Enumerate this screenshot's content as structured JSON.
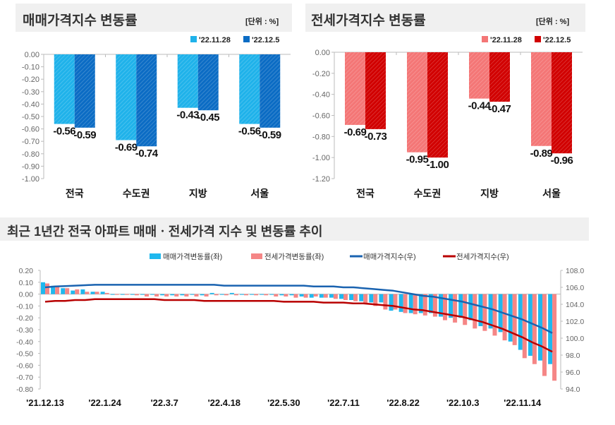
{
  "colors": {
    "sale_prev": "#1fb2ea",
    "sale_curr": "#0b6cc4",
    "jeonse_prev": "#f47676",
    "jeonse_curr": "#d10000",
    "sale_index_line": "#1a63b0",
    "jeonse_index_line": "#b80000",
    "sale_rate_bar": "#1fb8ee",
    "jeonse_rate_bar": "#f58686",
    "title_bg": "#f0f0f0"
  },
  "chart_data": [
    {
      "type": "bar",
      "title": "매매가격지수 변동률",
      "unit": "[단위 : %]",
      "categories": [
        "전국",
        "수도권",
        "지방",
        "서울"
      ],
      "series": [
        {
          "name": "'22.11.28",
          "values": [
            -0.56,
            -0.69,
            -0.43,
            -0.56
          ]
        },
        {
          "name": "'22.12.5",
          "values": [
            -0.59,
            -0.74,
            -0.45,
            -0.59
          ]
        }
      ],
      "ylim": [
        -1.0,
        0.0
      ],
      "yticks": [
        "0.00",
        "-0.10",
        "-0.20",
        "-0.30",
        "-0.40",
        "-0.50",
        "-0.60",
        "-0.70",
        "-0.80",
        "-0.90",
        "-1.00"
      ],
      "data_labels": [
        [
          "-0.56",
          "-0.69",
          "-0.43",
          "-0.56"
        ],
        [
          "-0.59",
          "-0.74",
          "-0.45",
          "-0.59"
        ]
      ],
      "legend": "top-right"
    },
    {
      "type": "bar",
      "title": "전세가격지수 변동률",
      "unit": "[단위 : %]",
      "categories": [
        "전국",
        "수도권",
        "지방",
        "서울"
      ],
      "series": [
        {
          "name": "'22.11.28",
          "values": [
            -0.69,
            -0.95,
            -0.44,
            -0.89
          ]
        },
        {
          "name": "'22.12.5",
          "values": [
            -0.73,
            -1.0,
            -0.47,
            -0.96
          ]
        }
      ],
      "ylim": [
        -1.2,
        0.0
      ],
      "yticks": [
        "0.00",
        "-0.20",
        "-0.40",
        "-0.60",
        "-0.80",
        "-1.00",
        "-1.20"
      ],
      "data_labels": [
        [
          "-0.69",
          "-0.95",
          "-0.44",
          "-0.89"
        ],
        [
          "-0.73",
          "-1.00",
          "-0.47",
          "-0.96"
        ]
      ],
      "legend": "top-right"
    },
    {
      "type": "bar+line",
      "title": "최근 1년간 전국 아파트 매매ㆍ전세가격 지수 및 변동률 추이",
      "x_tick_labels": [
        "'21.12.13",
        "'22.1.24",
        "'22.3.7",
        "'22.4.18",
        "'22.5.30",
        "'22.7.11",
        "'22.8.22",
        "'22.10.3",
        "'22.11.14"
      ],
      "y_left": {
        "lim": [
          -0.8,
          0.2
        ],
        "ticks": [
          "0.20",
          "0.10",
          "0.00",
          "-0.10",
          "-0.20",
          "-0.30",
          "-0.40",
          "-0.50",
          "-0.60",
          "-0.70",
          "-0.80"
        ]
      },
      "y_right": {
        "lim": [
          94.0,
          108.0
        ],
        "ticks": [
          "108.0",
          "106.0",
          "104.0",
          "102.0",
          "100.0",
          "98.0",
          "96.0",
          "94.0"
        ]
      },
      "legend": "top",
      "series": [
        {
          "name": "매매가격변동률(좌)",
          "kind": "bar",
          "axis": "left",
          "values": [
            0.1,
            0.07,
            0.05,
            0.03,
            0.04,
            0.02,
            0.02,
            0.0,
            0.0,
            0.0,
            0.0,
            0.0,
            -0.01,
            -0.01,
            -0.01,
            0.0,
            -0.01,
            0.01,
            0.0,
            0.01,
            0.0,
            0.0,
            0.0,
            0.0,
            -0.01,
            -0.01,
            -0.02,
            -0.03,
            -0.03,
            -0.03,
            -0.04,
            -0.05,
            -0.06,
            -0.07,
            -0.07,
            -0.14,
            -0.15,
            -0.16,
            -0.16,
            -0.16,
            -0.19,
            -0.2,
            -0.2,
            -0.22,
            -0.27,
            -0.29,
            -0.32,
            -0.4,
            -0.47,
            -0.52,
            -0.56,
            -0.59
          ]
        },
        {
          "name": "전세가격변동률(좌)",
          "kind": "bar",
          "axis": "left",
          "values": [
            0.09,
            0.06,
            0.05,
            0.04,
            0.02,
            0.02,
            0.01,
            0.0,
            0.0,
            -0.01,
            -0.02,
            -0.02,
            -0.02,
            -0.02,
            -0.02,
            -0.02,
            -0.02,
            -0.01,
            -0.01,
            -0.01,
            -0.01,
            -0.01,
            -0.01,
            -0.02,
            -0.02,
            -0.03,
            -0.03,
            -0.02,
            -0.03,
            -0.04,
            -0.05,
            -0.06,
            -0.08,
            -0.1,
            -0.13,
            -0.13,
            -0.16,
            -0.17,
            -0.18,
            -0.19,
            -0.22,
            -0.24,
            -0.26,
            -0.29,
            -0.31,
            -0.35,
            -0.39,
            -0.43,
            -0.54,
            -0.59,
            -0.69,
            -0.73
          ]
        },
        {
          "name": "매매가격지수(우)",
          "kind": "line",
          "axis": "right",
          "values": [
            106.0,
            106.1,
            106.15,
            106.2,
            106.25,
            106.3,
            106.3,
            106.3,
            106.3,
            106.3,
            106.3,
            106.3,
            106.3,
            106.3,
            106.3,
            106.3,
            106.3,
            106.3,
            106.2,
            106.2,
            106.2,
            106.2,
            106.2,
            106.2,
            106.2,
            106.2,
            106.2,
            106.1,
            106.1,
            106.1,
            106.0,
            106.0,
            105.9,
            105.8,
            105.7,
            105.6,
            105.4,
            105.2,
            105.0,
            104.9,
            104.7,
            104.5,
            104.3,
            104.0,
            103.7,
            103.4,
            103.0,
            102.6,
            102.2,
            101.7,
            101.2,
            100.6
          ]
        },
        {
          "name": "전세가격지수(우)",
          "kind": "line",
          "axis": "right",
          "values": [
            104.3,
            104.4,
            104.4,
            104.5,
            104.5,
            104.6,
            104.6,
            104.6,
            104.6,
            104.6,
            104.6,
            104.6,
            104.5,
            104.5,
            104.5,
            104.5,
            104.4,
            104.4,
            104.4,
            104.4,
            104.4,
            104.4,
            104.4,
            104.4,
            104.3,
            104.3,
            104.3,
            104.3,
            104.2,
            104.2,
            104.2,
            104.1,
            104.1,
            104.0,
            103.9,
            103.8,
            103.6,
            103.4,
            103.3,
            103.1,
            102.9,
            102.7,
            102.5,
            102.2,
            101.9,
            101.5,
            101.1,
            100.6,
            100.1,
            99.5,
            99.0,
            98.4
          ]
        }
      ]
    }
  ]
}
